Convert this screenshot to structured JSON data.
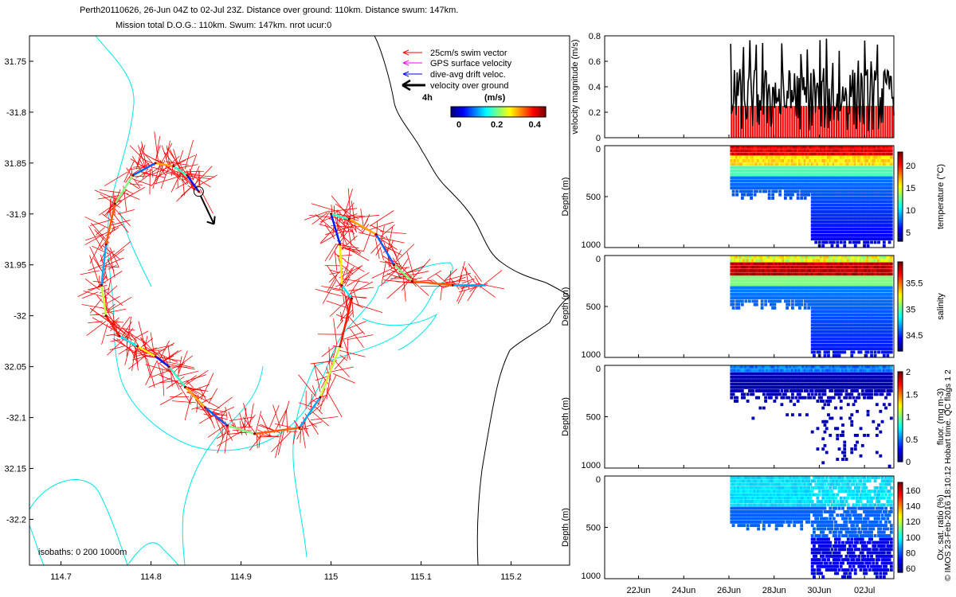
{
  "title": {
    "line1": "Perth20110626, 26-Jun 04Z to 02-Jul 23Z. Distance over ground: 110km. Distance swum: 147km.",
    "line2": "Mission total D.O.G.: 110km. Swum: 147km. nrot ucur:0"
  },
  "side_note": "© IMOS 23-Feb-2016 18:10:12 Hobart time. QC flags 1  2",
  "colors": {
    "swim": "#ff0000",
    "gps": "#ff00ff",
    "drift": "#0000ff",
    "vog": "#000000",
    "isobath": "#00e5ee",
    "coast": "#000000"
  },
  "chart_data": [
    {
      "type": "map",
      "xlim": [
        114.665,
        115.265
      ],
      "ylim": [
        -32.245,
        -31.725
      ],
      "xticks": [
        114.7,
        114.8,
        114.9,
        115,
        115.1,
        115.2
      ],
      "xtick_labels": [
        "114.7",
        "114.8",
        "114.9",
        "115",
        "115.1",
        "115.2"
      ],
      "yticks": [
        -31.75,
        -31.8,
        -31.85,
        -31.9,
        -31.95,
        -32,
        -32.05,
        -32.1,
        -32.15,
        -32.2
      ],
      "ytick_labels": [
        "31.75",
        "-31.8",
        "31.85",
        "-31.9",
        "31.95",
        "-32",
        "32.05",
        "-32.1",
        "32.15",
        "-32.2"
      ],
      "legend": {
        "entries": [
          "25cm/s swim vector",
          "GPS surface velocity",
          "dive-avg drift veloc.",
          "velocity over ground"
        ],
        "scale_label": "4h",
        "colorbar_label": "(m/s)",
        "colorbar_ticks": [
          "0",
          "0.2",
          "0.4"
        ],
        "colorbar_range": [
          0,
          0.5
        ]
      },
      "isobath_label": "isobaths: 0   200  1000m",
      "track": [
        [
          114.853,
          -31.878
        ],
        [
          114.84,
          -31.862
        ],
        [
          114.825,
          -31.853
        ],
        [
          114.805,
          -31.85
        ],
        [
          114.78,
          -31.862
        ],
        [
          114.76,
          -31.89
        ],
        [
          114.75,
          -31.93
        ],
        [
          114.745,
          -31.97
        ],
        [
          114.75,
          -32.0
        ],
        [
          114.765,
          -32.02
        ],
        [
          114.785,
          -32.03
        ],
        [
          114.805,
          -32.04
        ],
        [
          114.82,
          -32.05
        ],
        [
          114.838,
          -32.07
        ],
        [
          114.86,
          -32.09
        ],
        [
          114.885,
          -32.108
        ],
        [
          114.915,
          -32.116
        ],
        [
          114.965,
          -32.11
        ],
        [
          114.988,
          -32.08
        ],
        [
          115.01,
          -32.03
        ],
        [
          115.023,
          -31.983
        ],
        [
          115.012,
          -31.97
        ],
        [
          115.01,
          -31.93
        ],
        [
          115.0,
          -31.9
        ],
        [
          115.02,
          -31.905
        ],
        [
          115.05,
          -31.92
        ],
        [
          115.07,
          -31.95
        ],
        [
          115.09,
          -31.966
        ],
        [
          115.135,
          -31.97
        ],
        [
          115.172,
          -31.97
        ]
      ],
      "vog_arrow": {
        "from": [
          114.855,
          -31.882
        ],
        "to": [
          114.87,
          -31.91
        ]
      }
    },
    {
      "type": "bar",
      "ylabel": "velocity magnitude (m/s)",
      "ylim": [
        0,
        0.8
      ],
      "yticks": [
        0,
        0.2,
        0.4,
        0.6,
        0.8
      ],
      "bars": {
        "start": 26.08,
        "end": 33.3,
        "value": 0.25,
        "color": "#ff0000"
      }
    },
    {
      "type": "heatmap",
      "ylabel": "Depth (m)",
      "clabel": "temperature (°C)",
      "cticks": [
        "20",
        "15",
        "10",
        "5"
      ],
      "cvals": [
        20,
        15,
        10,
        5
      ],
      "clim": [
        3,
        23
      ]
    },
    {
      "type": "heatmap",
      "ylabel": "Depth (m)",
      "clabel": "salinity",
      "cticks": [
        "35.5",
        "35",
        "34.5"
      ],
      "cvals": [
        35.5,
        35,
        34.5
      ],
      "clim": [
        34.2,
        35.9
      ]
    },
    {
      "type": "heatmap",
      "ylabel": "Depth (m)",
      "clabel": "fluor. (mg m-3)",
      "cticks": [
        "2",
        "1.5",
        "1",
        "0.5",
        "0"
      ],
      "cvals": [
        2,
        1.5,
        1,
        0.5,
        0
      ],
      "clim": [
        0,
        2
      ]
    },
    {
      "type": "heatmap",
      "ylabel": "Depth (m)",
      "clabel": "Ox. sat. ratio (%)",
      "cticks": [
        "160",
        "140",
        "120",
        "100",
        "80",
        "60"
      ],
      "cvals": [
        160,
        140,
        120,
        100,
        80,
        60
      ],
      "clim": [
        55,
        170
      ]
    }
  ],
  "timeseries_axis": {
    "xlim": [
      20.5,
      33.3
    ],
    "xticks": [
      22,
      24,
      26,
      28,
      30,
      32
    ],
    "xtick_labels": [
      "22Jun",
      "24Jun",
      "26Jun",
      "28Jun",
      "30Jun",
      "02Jul"
    ],
    "depth_ticks": [
      0,
      500,
      1000
    ],
    "depth_tick_labels": [
      "0",
      "500",
      "1000"
    ],
    "depth_max": 1000
  }
}
